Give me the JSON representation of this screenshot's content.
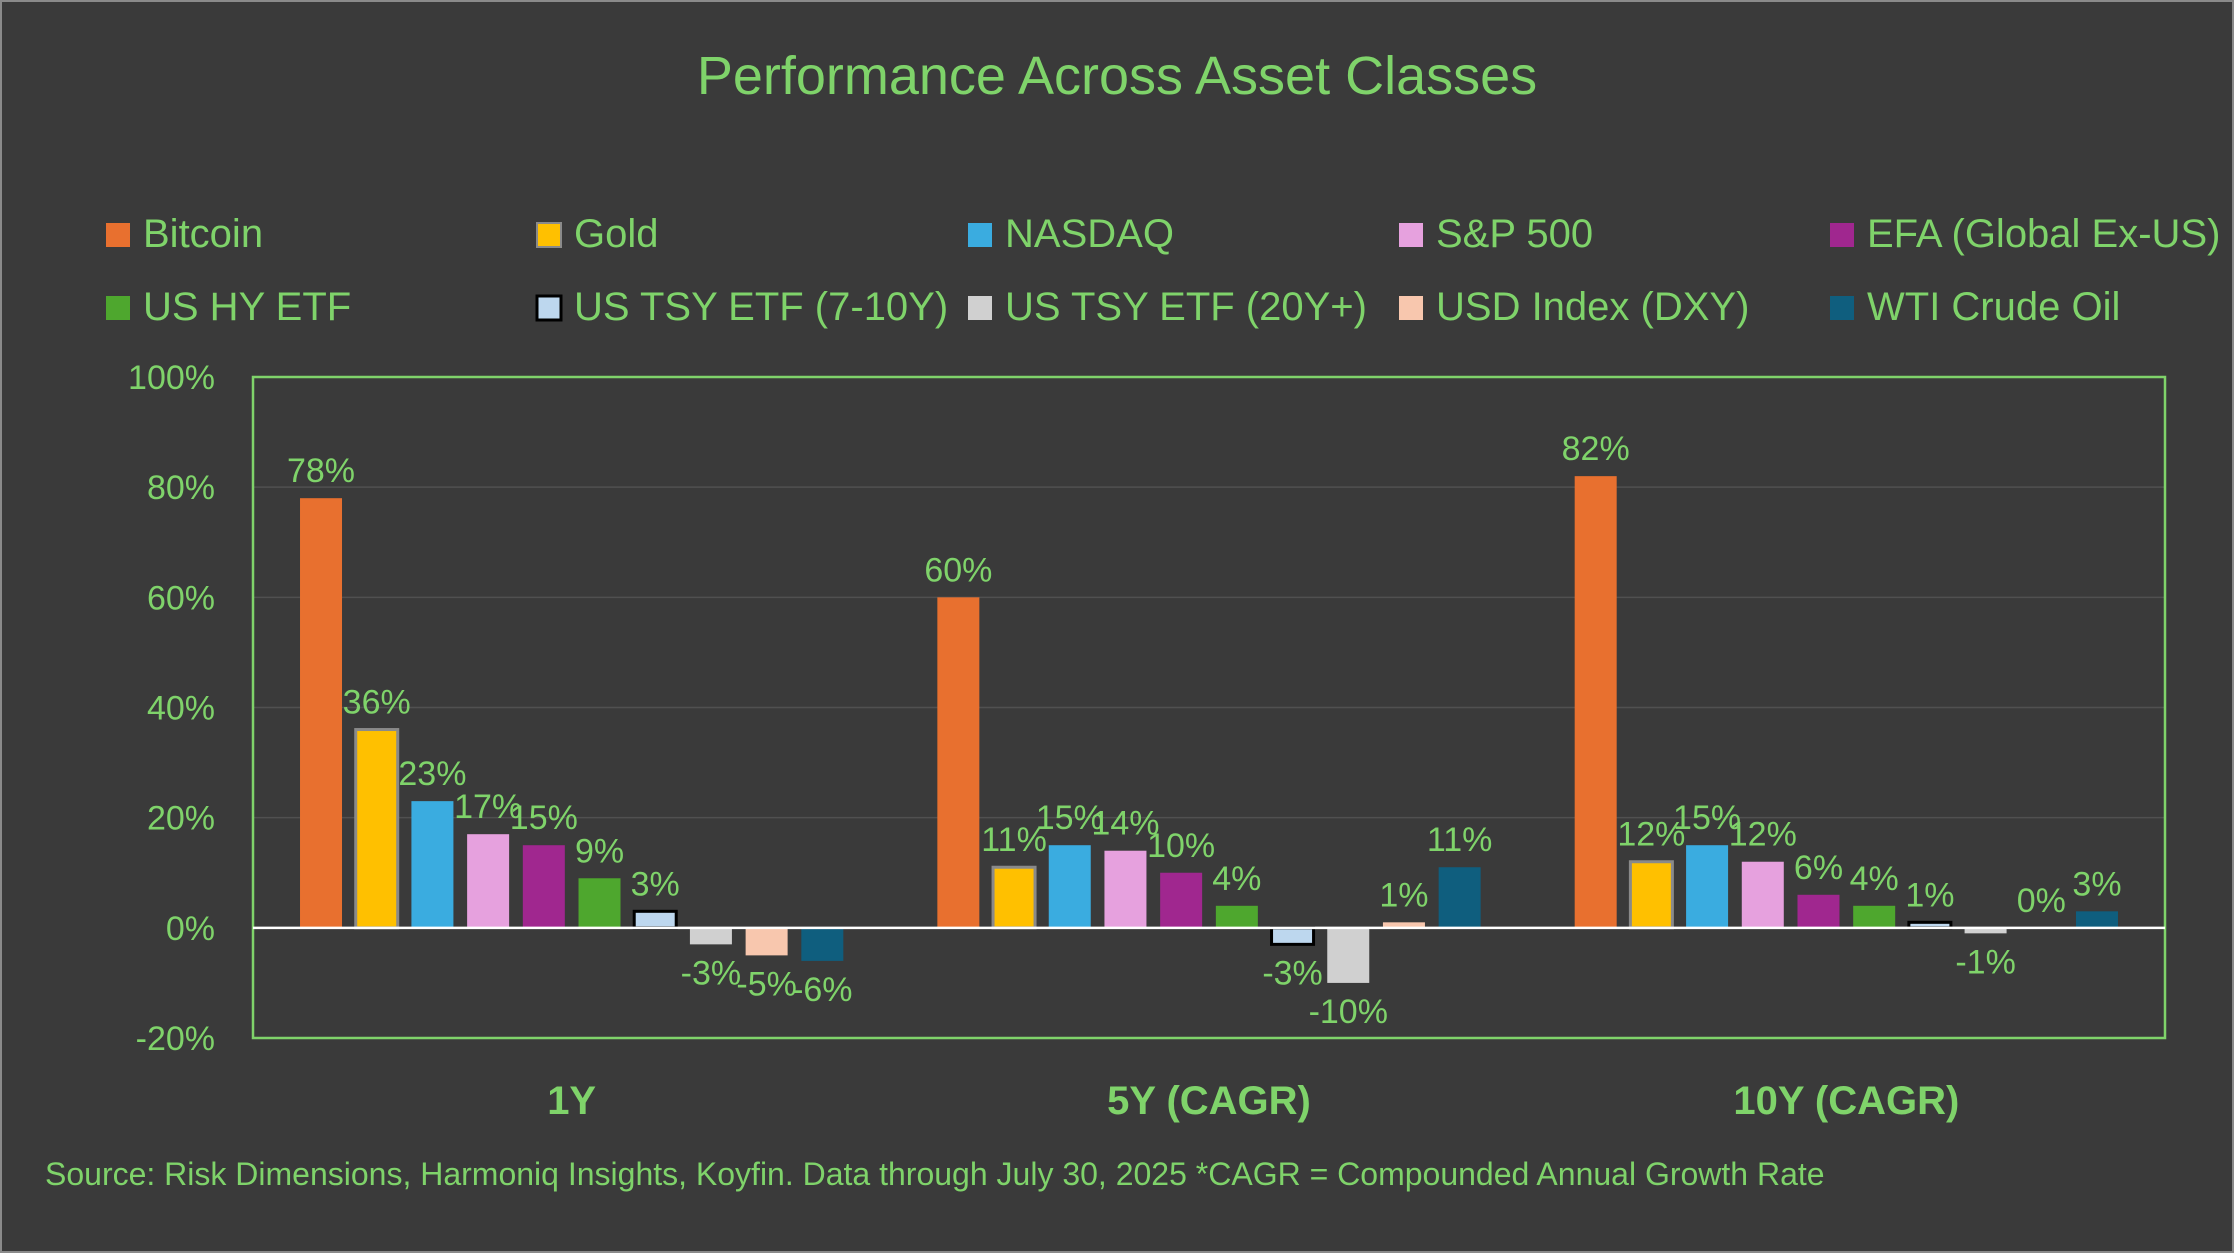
{
  "chart_data": {
    "type": "bar",
    "title": "Performance Across Asset Classes",
    "categories": [
      "1Y",
      "5Y (CAGR)",
      "10Y (CAGR)"
    ],
    "ylim": [
      -20,
      100
    ],
    "yticks": [
      -20,
      0,
      20,
      40,
      60,
      80,
      100
    ],
    "ytick_labels": [
      "-20%",
      "0%",
      "20%",
      "40%",
      "60%",
      "80%",
      "100%"
    ],
    "grid": true,
    "legend_position": "top",
    "series": [
      {
        "name": "Bitcoin",
        "color": "#e8702f",
        "values": [
          78,
          60,
          82
        ],
        "labels": [
          "78%",
          "60%",
          "82%"
        ]
      },
      {
        "name": "Gold",
        "color": "#ffc000",
        "values": [
          36,
          11,
          12
        ],
        "labels": [
          "36%",
          "11%",
          "12%"
        ]
      },
      {
        "name": "NASDAQ",
        "color": "#3aace0",
        "values": [
          23,
          15,
          15
        ],
        "labels": [
          "23%",
          "15%",
          "15%"
        ]
      },
      {
        "name": "S&P 500",
        "color": "#e6a1de",
        "values": [
          17,
          14,
          12
        ],
        "labels": [
          "17%",
          "14%",
          "12%"
        ]
      },
      {
        "name": "EFA (Global Ex-US)",
        "color": "#a0278f",
        "values": [
          15,
          10,
          6
        ],
        "labels": [
          "15%",
          "10%",
          "6%"
        ]
      },
      {
        "name": "US HY ETF",
        "color": "#4ea72e",
        "values": [
          9,
          4,
          4
        ],
        "labels": [
          "9%",
          "4%",
          "4%"
        ]
      },
      {
        "name": "US TSY ETF (7-10Y)",
        "color": "#bdd7ee",
        "values": [
          3,
          -3,
          1
        ],
        "labels": [
          "3%",
          "-3%",
          "1%"
        ]
      },
      {
        "name": "US TSY ETF (20Y+)",
        "color": "#d0d0d0",
        "values": [
          -3,
          -10,
          -1
        ],
        "labels": [
          "-3%",
          "-10%",
          "-1%"
        ]
      },
      {
        "name": "USD Index (DXY)",
        "color": "#f8c7ae",
        "values": [
          -5,
          1,
          0
        ],
        "labels": [
          "-5%",
          "1%",
          "0%"
        ]
      },
      {
        "name": "WTI Crude Oil",
        "color": "#0f5e7e",
        "values": [
          -6,
          11,
          3
        ],
        "labels": [
          "-6%",
          "11%",
          "3%"
        ]
      }
    ]
  },
  "source_note": "Source: Risk Dimensions, Harmoniq Insights, Koyfin. Data through July 30, 2025 *CAGR = Compounded Annual Growth Rate",
  "colors": {
    "background": "#3a3a3a",
    "text": "#7fd36a",
    "plot_border": "#7fd36a",
    "zero_line": "#ffffff",
    "gridline": "#505050"
  }
}
